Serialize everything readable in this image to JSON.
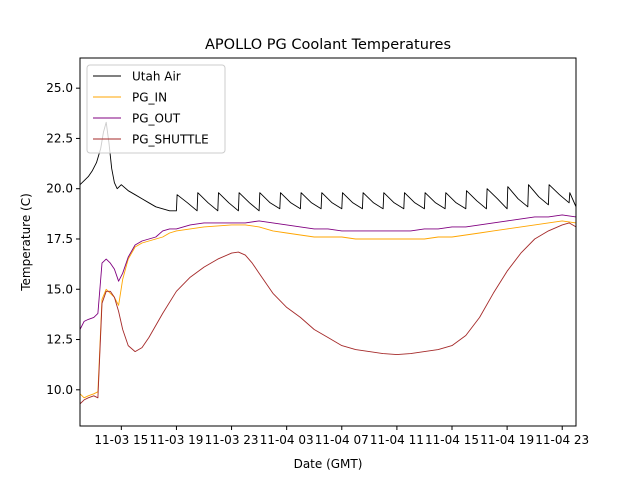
{
  "chart_data": {
    "type": "line",
    "title": "APOLLO PG Coolant Temperatures",
    "xlabel": "Date (GMT)",
    "ylabel": "Temperature (C)",
    "x_units": "hours since 11-03 00:00 GMT",
    "xlim": [
      12.0,
      48.0
    ],
    "ylim": [
      8.2,
      26.5
    ],
    "grid": false,
    "legend_position": "top-left",
    "xticks": [
      {
        "value": 15,
        "label": "11-03 15"
      },
      {
        "value": 19,
        "label": "11-03 19"
      },
      {
        "value": 23,
        "label": "11-03 23"
      },
      {
        "value": 27,
        "label": "11-04 03"
      },
      {
        "value": 31,
        "label": "11-04 07"
      },
      {
        "value": 35,
        "label": "11-04 11"
      },
      {
        "value": 39,
        "label": "11-04 15"
      },
      {
        "value": 43,
        "label": "11-04 19"
      },
      {
        "value": 47,
        "label": "11-04 23"
      }
    ],
    "yticks": [
      {
        "value": 10.0,
        "label": "10.0"
      },
      {
        "value": 12.5,
        "label": "12.5"
      },
      {
        "value": 15.0,
        "label": "15.0"
      },
      {
        "value": 17.5,
        "label": "17.5"
      },
      {
        "value": 20.0,
        "label": "20.0"
      },
      {
        "value": 22.5,
        "label": "22.5"
      },
      {
        "value": 25.0,
        "label": "25.0"
      }
    ],
    "series": [
      {
        "name": "Utah Air",
        "color": "#000000",
        "x": [
          12.0,
          12.3,
          12.6,
          12.9,
          13.2,
          13.5,
          13.7,
          13.9,
          14.1,
          14.3,
          14.5,
          14.7,
          15.0,
          15.5,
          16.0,
          16.5,
          17.0,
          17.5,
          18.0,
          18.5,
          19.0,
          19.05,
          19.8,
          20.5,
          20.55,
          21.3,
          22.0,
          22.05,
          22.8,
          23.5,
          23.55,
          24.3,
          25.0,
          25.05,
          25.8,
          26.5,
          26.55,
          27.3,
          28.0,
          28.05,
          28.8,
          29.5,
          29.55,
          30.3,
          31.0,
          31.05,
          31.8,
          32.5,
          32.55,
          33.3,
          34.0,
          34.05,
          34.8,
          35.5,
          35.55,
          36.3,
          37.0,
          37.05,
          37.8,
          38.5,
          38.55,
          39.3,
          40.0,
          40.05,
          40.8,
          41.5,
          41.55,
          42.3,
          43.0,
          43.05,
          43.8,
          44.5,
          44.55,
          45.3,
          46.0,
          46.05,
          46.8,
          47.5,
          47.55,
          48.0
        ],
        "y": [
          20.2,
          20.4,
          20.6,
          20.9,
          21.3,
          22.0,
          22.8,
          23.3,
          22.3,
          21.0,
          20.3,
          20.0,
          20.2,
          19.9,
          19.7,
          19.5,
          19.3,
          19.1,
          19.0,
          18.9,
          18.9,
          19.7,
          19.3,
          18.9,
          19.8,
          19.3,
          18.9,
          19.8,
          19.3,
          18.9,
          19.8,
          19.3,
          18.9,
          19.8,
          19.3,
          19.0,
          19.8,
          19.3,
          19.0,
          19.8,
          19.3,
          19.0,
          19.8,
          19.3,
          19.0,
          19.8,
          19.3,
          19.0,
          19.8,
          19.3,
          19.0,
          19.8,
          19.3,
          19.0,
          19.8,
          19.3,
          19.0,
          19.8,
          19.3,
          19.0,
          19.8,
          19.3,
          19.0,
          19.9,
          19.4,
          19.0,
          20.0,
          19.5,
          19.0,
          20.1,
          19.5,
          19.1,
          20.2,
          19.6,
          19.2,
          20.2,
          19.7,
          19.3,
          19.8,
          19.1
        ]
      },
      {
        "name": "PG_IN",
        "color": "#ffa500",
        "x": [
          12.0,
          12.3,
          12.6,
          13.0,
          13.3,
          13.6,
          13.9,
          14.2,
          14.5,
          14.8,
          15.1,
          15.5,
          16.0,
          16.5,
          17.0,
          17.5,
          18.0,
          18.5,
          19.0,
          20.0,
          21.0,
          22.0,
          23.0,
          24.0,
          25.0,
          26.0,
          27.0,
          28.0,
          29.0,
          30.0,
          31.0,
          32.0,
          33.0,
          34.0,
          35.0,
          36.0,
          37.0,
          38.0,
          39.0,
          40.0,
          41.0,
          42.0,
          43.0,
          44.0,
          45.0,
          46.0,
          47.0,
          48.0
        ],
        "y": [
          9.8,
          9.6,
          9.7,
          9.8,
          9.9,
          14.5,
          15.0,
          14.8,
          14.6,
          14.2,
          15.5,
          16.5,
          17.1,
          17.3,
          17.4,
          17.5,
          17.6,
          17.8,
          17.9,
          18.0,
          18.1,
          18.15,
          18.2,
          18.2,
          18.1,
          17.9,
          17.8,
          17.7,
          17.6,
          17.6,
          17.6,
          17.5,
          17.5,
          17.5,
          17.5,
          17.5,
          17.5,
          17.6,
          17.6,
          17.7,
          17.8,
          17.9,
          18.0,
          18.1,
          18.2,
          18.3,
          18.4,
          18.3
        ]
      },
      {
        "name": "PG_OUT",
        "color": "#800080",
        "x": [
          12.0,
          12.3,
          12.6,
          13.0,
          13.3,
          13.6,
          13.9,
          14.2,
          14.5,
          14.8,
          15.1,
          15.5,
          16.0,
          16.5,
          17.0,
          17.5,
          18.0,
          18.5,
          19.0,
          20.0,
          21.0,
          22.0,
          23.0,
          24.0,
          25.0,
          26.0,
          27.0,
          28.0,
          29.0,
          30.0,
          31.0,
          32.0,
          33.0,
          34.0,
          35.0,
          36.0,
          37.0,
          38.0,
          39.0,
          40.0,
          41.0,
          42.0,
          43.0,
          44.0,
          45.0,
          46.0,
          47.0,
          48.0
        ],
        "y": [
          13.0,
          13.4,
          13.5,
          13.6,
          13.8,
          16.3,
          16.5,
          16.3,
          16.0,
          15.4,
          15.8,
          16.6,
          17.2,
          17.4,
          17.5,
          17.6,
          17.9,
          18.0,
          18.0,
          18.2,
          18.3,
          18.3,
          18.3,
          18.3,
          18.4,
          18.3,
          18.2,
          18.1,
          18.0,
          18.0,
          17.9,
          17.9,
          17.9,
          17.9,
          17.9,
          17.9,
          18.0,
          18.0,
          18.1,
          18.1,
          18.2,
          18.3,
          18.4,
          18.5,
          18.6,
          18.6,
          18.7,
          18.6
        ]
      },
      {
        "name": "PG_SHUTTLE",
        "color": "#a52a2a",
        "x": [
          12.0,
          12.3,
          12.6,
          13.0,
          13.3,
          13.6,
          13.9,
          14.2,
          14.5,
          14.8,
          15.1,
          15.5,
          16.0,
          16.5,
          17.0,
          18.0,
          19.0,
          20.0,
          21.0,
          22.0,
          23.0,
          23.5,
          24.0,
          24.5,
          25.0,
          26.0,
          27.0,
          28.0,
          29.0,
          30.0,
          31.0,
          32.0,
          33.0,
          34.0,
          35.0,
          36.0,
          37.0,
          38.0,
          39.0,
          40.0,
          41.0,
          42.0,
          43.0,
          44.0,
          45.0,
          46.0,
          47.0,
          47.5,
          48.0
        ],
        "y": [
          9.3,
          9.5,
          9.6,
          9.7,
          9.6,
          14.3,
          14.9,
          14.9,
          14.6,
          13.9,
          13.0,
          12.2,
          11.9,
          12.1,
          12.6,
          13.8,
          14.9,
          15.6,
          16.1,
          16.5,
          16.8,
          16.85,
          16.7,
          16.3,
          15.8,
          14.8,
          14.1,
          13.6,
          13.0,
          12.6,
          12.2,
          12.0,
          11.9,
          11.8,
          11.75,
          11.8,
          11.9,
          12.0,
          12.2,
          12.7,
          13.6,
          14.8,
          15.9,
          16.8,
          17.5,
          17.9,
          18.2,
          18.3,
          18.1
        ]
      }
    ]
  }
}
